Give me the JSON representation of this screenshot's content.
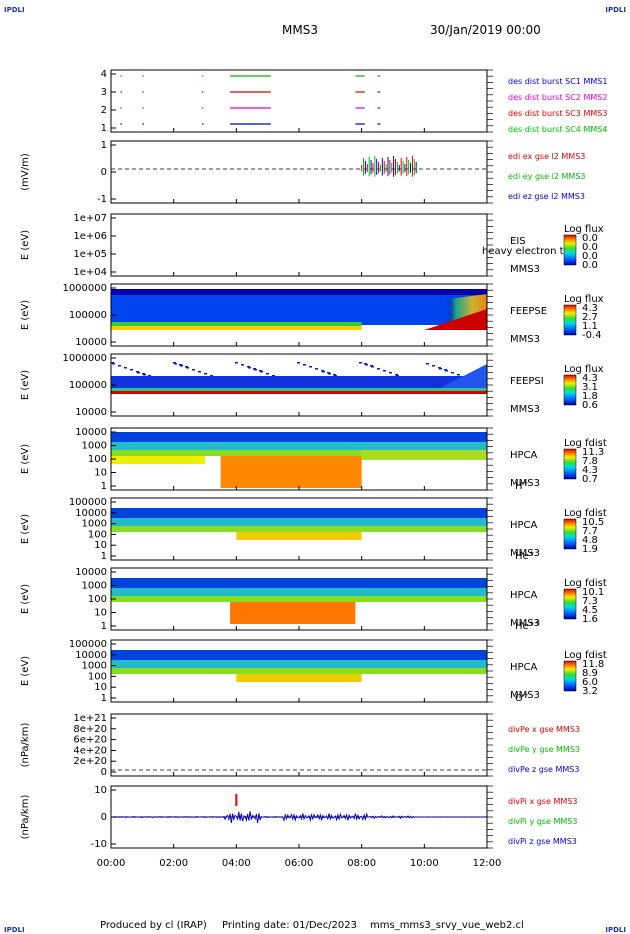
{
  "header": {
    "corner_left": "IPDLI",
    "corner_right": "IPDLI",
    "spacecraft": "MMS3",
    "date": "30/Jan/2019 00:00"
  },
  "footer": {
    "corner_left": "IPDLI",
    "corner_right": "IPDLI",
    "produced": "Produced by cl (IRAP)",
    "printing": "Printing date: 01/Dec/2023",
    "file": "mms_mms3_srvy_vue_web2.cl"
  },
  "time_axis": {
    "ticks": [
      "00:00",
      "02:00",
      "04:00",
      "06:00",
      "08:00",
      "10:00",
      "12:00"
    ],
    "hours": [
      0,
      2,
      4,
      6,
      8,
      10,
      12
    ]
  },
  "colors": {
    "mms1": "#0000cc",
    "mms2": "#dd00dd",
    "mms3": "#dd0000",
    "mms4": "#00bb00"
  },
  "chart_data": [
    {
      "type": "line",
      "name": "burst",
      "yticks": [
        "4",
        "3",
        "2",
        "1"
      ],
      "legend": [
        {
          "label": "des dist burst SC1 MMS1",
          "color": "#0000cc"
        },
        {
          "label": "des dist burst SC2 MMS2",
          "color": "#dd00dd"
        },
        {
          "label": "des dist burst SC3 MMS3",
          "color": "#dd0000"
        },
        {
          "label": "des dist burst SC4 MMS4",
          "color": "#00bb00"
        }
      ],
      "intervals_hours": [
        [
          0.3,
          0.35
        ],
        [
          1.0,
          1.05
        ],
        [
          2.9,
          2.95
        ],
        [
          3.8,
          5.1
        ],
        [
          7.8,
          8.1
        ],
        [
          8.5,
          8.6
        ]
      ]
    },
    {
      "type": "line",
      "name": "edi",
      "ylabel": "(mV/m)",
      "yticks": [
        "1",
        "0",
        "-1"
      ],
      "legend": [
        {
          "label": "edi ex gse l2 MMS3",
          "color": "#dd0000"
        },
        {
          "label": "edi ey gse l2 MMS3",
          "color": "#00bb00"
        },
        {
          "label": "edi ez gse l2 MMS3",
          "color": "#0000cc"
        }
      ],
      "x_range_hours": [
        8.0,
        9.8
      ]
    },
    {
      "type": "heatmap",
      "name": "EIS",
      "ylabel": "E (eV)",
      "yticks": [
        "1e+07",
        "1e+06",
        "1e+05",
        "1e+04"
      ],
      "instrument": "EIS",
      "extra": "heavy electron to",
      "sc": "MMS3",
      "cbar_title": "Log flux",
      "cbar_values": [
        "0.0",
        "0.0",
        "0.0",
        "0.0"
      ]
    },
    {
      "type": "heatmap",
      "name": "FEEPSE",
      "ylabel": "E (eV)",
      "yticks": [
        "1000000",
        "100000",
        "10000"
      ],
      "instrument": "FEEPSE",
      "sc": "MMS3",
      "cbar_title": "Log flux",
      "cbar_values": [
        "4.3",
        "2.7",
        "1.1",
        "-0.4"
      ]
    },
    {
      "type": "heatmap",
      "name": "FEEPSI",
      "ylabel": "E (eV)",
      "yticks": [
        "1000000",
        "100000",
        "10000"
      ],
      "instrument": "FEEPSI",
      "sc": "MMS3",
      "cbar_title": "Log flux",
      "cbar_values": [
        "4.3",
        "3.1",
        "1.8",
        "0.6"
      ]
    },
    {
      "type": "heatmap",
      "name": "HPCA-H",
      "ylabel": "E (eV)",
      "yticks": [
        "10000",
        "1000",
        "100",
        "10",
        "1"
      ],
      "instrument": "HPCA",
      "sc": "MMS3",
      "species": "H",
      "species_sup": "+",
      "cbar_title": "Log fdist",
      "cbar_values": [
        "11.3",
        "7.8",
        "4.3",
        "0.7"
      ]
    },
    {
      "type": "heatmap",
      "name": "HPCA-He",
      "ylabel": "E (eV)",
      "yticks": [
        "100000",
        "10000",
        "1000",
        "100",
        "10",
        "1"
      ],
      "instrument": "HPCA",
      "sc": "MMS3",
      "species": "He",
      "species_sup": "+",
      "cbar_title": "Log fdist",
      "cbar_values": [
        "10.5",
        "7.7",
        "4.8",
        "1.9"
      ]
    },
    {
      "type": "heatmap",
      "name": "HPCA-He2",
      "ylabel": "E (eV)",
      "yticks": [
        "10000",
        "1000",
        "100",
        "10",
        "1"
      ],
      "instrument": "HPCA",
      "sc": "MMS3",
      "species": "He",
      "species_sup": "++",
      "cbar_title": "Log fdist",
      "cbar_values": [
        "10.1",
        "7.3",
        "4.5",
        "1.6"
      ]
    },
    {
      "type": "heatmap",
      "name": "HPCA-O",
      "ylabel": "E (eV)",
      "yticks": [
        "100000",
        "10000",
        "1000",
        "100",
        "10",
        "1"
      ],
      "instrument": "HPCA",
      "sc": "MMS3",
      "species": "O",
      "species_sup": "+",
      "cbar_title": "Log fdist",
      "cbar_values": [
        "11.8",
        "8.9",
        "6.0",
        "3.2"
      ]
    },
    {
      "type": "line",
      "name": "divPe",
      "ylabel": "(nPa/km)",
      "yticks": [
        "1e+21",
        "8e+20",
        "6e+20",
        "4e+20",
        "2e+20",
        "0"
      ],
      "legend": [
        {
          "label": "divPe x gse MMS3",
          "color": "#dd0000"
        },
        {
          "label": "divPe y gse MMS3",
          "color": "#00bb00"
        },
        {
          "label": "divPe z gse MMS3",
          "color": "#0000cc"
        }
      ]
    },
    {
      "type": "line",
      "name": "divPi",
      "ylabel": "(nPa/km)",
      "yticks": [
        "10",
        "0",
        "-10"
      ],
      "legend": [
        {
          "label": "divPi x gse MMS3",
          "color": "#dd0000"
        },
        {
          "label": "divPi y gse MMS3",
          "color": "#00bb00"
        },
        {
          "label": "divPi z gse MMS3",
          "color": "#0000cc"
        }
      ]
    }
  ]
}
